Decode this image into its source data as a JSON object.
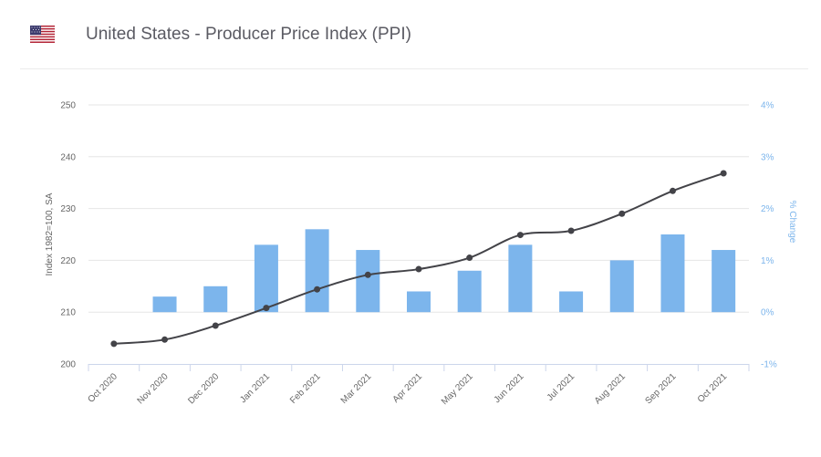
{
  "header": {
    "title": "United States - Producer Price Index (PPI)",
    "flag_icon": "us-flag-icon"
  },
  "chart_data": {
    "type": "bar+line",
    "categories": [
      "Oct 2020",
      "Nov 2020",
      "Dec 2020",
      "Jan 2021",
      "Feb 2021",
      "Mar 2021",
      "Apr 2021",
      "May 2021",
      "Jun 2021",
      "Jul 2021",
      "Aug 2021",
      "Sep 2021",
      "Oct 2021"
    ],
    "series": [
      {
        "kind": "line",
        "axis": "left",
        "values": [
          203.9,
          204.7,
          207.4,
          210.8,
          214.4,
          217.2,
          218.3,
          220.5,
          224.9,
          225.7,
          229.0,
          233.4,
          236.8
        ]
      },
      {
        "kind": "bar",
        "axis": "right",
        "values": [
          null,
          0.3,
          0.5,
          1.3,
          1.6,
          1.2,
          0.4,
          0.8,
          1.3,
          0.4,
          1.0,
          1.5,
          1.2
        ]
      }
    ],
    "ylabel": "Index 1982=100, SA",
    "y2label": "% Change",
    "ylim": [
      200,
      250
    ],
    "y2lim": [
      -1,
      4
    ],
    "yticks": [
      "200",
      "210",
      "220",
      "230",
      "240",
      "250"
    ],
    "y2ticks": [
      "-1%",
      "0%",
      "1%",
      "2%",
      "3%",
      "4%"
    ],
    "grid": true,
    "colors": {
      "line": "#434348",
      "bar": "#7cb5ec",
      "grid": "#e6e6e6",
      "axis": "#ccd6eb",
      "left_text": "#666666",
      "right_text": "#7cb5ec"
    }
  }
}
